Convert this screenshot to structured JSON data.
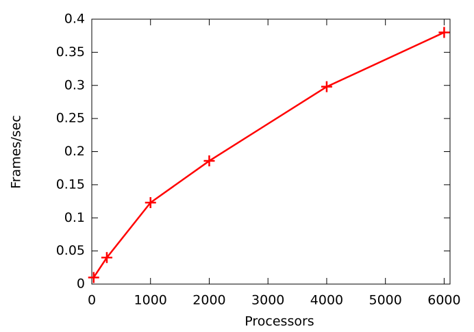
{
  "chart_data": {
    "type": "line",
    "x_label": "Processors",
    "y_label": "Frames/sec",
    "x": [
      32,
      256,
      1000,
      2000,
      4000,
      6000
    ],
    "series": [
      {
        "name": "Frames/sec",
        "color": "#ff0000",
        "values": [
          0.01,
          0.04,
          0.123,
          0.186,
          0.298,
          0.38
        ]
      }
    ],
    "xlim": [
      0,
      6100
    ],
    "xticks": [
      0,
      1000,
      2000,
      3000,
      4000,
      5000,
      6000
    ],
    "ylim": [
      0,
      0.4
    ],
    "yticks": [
      0,
      0.05,
      0.1,
      0.15,
      0.2,
      0.25,
      0.3,
      0.35,
      0.4
    ],
    "grid": false
  }
}
